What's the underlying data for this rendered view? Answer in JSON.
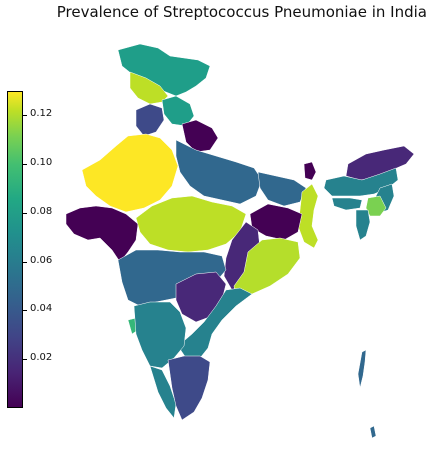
{
  "title": "Prevalence of Streptococcus Pneumoniae in India",
  "colorbar": {
    "min": 0.0,
    "max": 0.13,
    "ticks": [
      "0.02",
      "0.04",
      "0.06",
      "0.08",
      "0.10",
      "0.12"
    ],
    "tick_values": [
      0.02,
      0.04,
      0.06,
      0.08,
      0.1,
      0.12
    ],
    "colormap": "viridis"
  },
  "colors": {
    "dark_purple": "#440154",
    "purple": "#482878",
    "indigo": "#3e4a89",
    "blue": "#31688e",
    "teal": "#26828e",
    "teal_green": "#1f9e89",
    "green": "#35b779",
    "lime": "#b5de2b",
    "yellow": "#fde725"
  }
}
